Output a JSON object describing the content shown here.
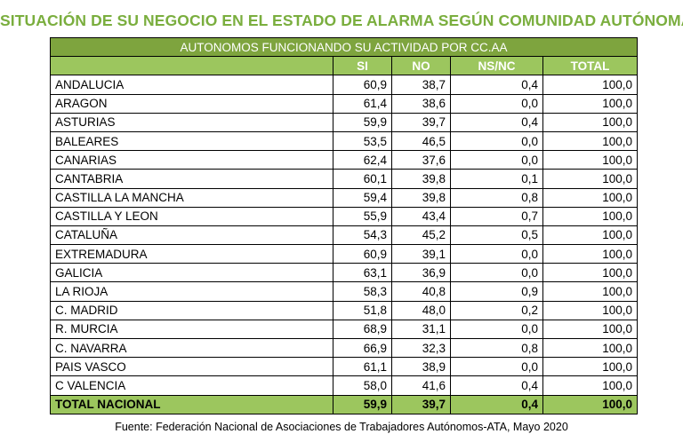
{
  "title": "SITUACIÓN DE SU NEGOCIO EN EL ESTADO DE ALARMA SEGÚN COMUNIDAD AUTÓNOMA",
  "subtitle": "AUTONOMOS FUNCIONANDO SU ACTIVIDAD POR CC.AA",
  "source": "Fuente: Federación Nacional de Asociaciones de Trabajadores Autónomos-ATA, Mayo 2020",
  "colors": {
    "title": "#7aae3e",
    "subtitle_band": "#7ea43e",
    "header": "#9cc65e",
    "total_row": "#9cc65e"
  },
  "chart_data": {
    "type": "table",
    "columns": [
      "",
      "SI",
      "NO",
      "NS/NC",
      "TOTAL"
    ],
    "rows": [
      {
        "name": "ANDALUCIA",
        "values": [
          "60,9",
          "38,7",
          "0,4",
          "100,0"
        ]
      },
      {
        "name": "ARAGON",
        "values": [
          "61,4",
          "38,6",
          "0,0",
          "100,0"
        ]
      },
      {
        "name": "ASTURIAS",
        "values": [
          "59,9",
          "39,7",
          "0,4",
          "100,0"
        ]
      },
      {
        "name": "BALEARES",
        "values": [
          "53,5",
          "46,5",
          "0,0",
          "100,0"
        ]
      },
      {
        "name": "CANARIAS",
        "values": [
          "62,4",
          "37,6",
          "0,0",
          "100,0"
        ]
      },
      {
        "name": "CANTABRIA",
        "values": [
          "60,1",
          "39,8",
          "0,1",
          "100,0"
        ]
      },
      {
        "name": "CASTILLA LA MANCHA",
        "values": [
          "59,4",
          "39,8",
          "0,8",
          "100,0"
        ]
      },
      {
        "name": "CASTILLA Y LEON",
        "values": [
          "55,9",
          "43,4",
          "0,7",
          "100,0"
        ]
      },
      {
        "name": "CATALUÑA",
        "values": [
          "54,3",
          "45,2",
          "0,5",
          "100,0"
        ]
      },
      {
        "name": "EXTREMADURA",
        "values": [
          "60,9",
          "39,1",
          "0,0",
          "100,0"
        ]
      },
      {
        "name": "GALICIA",
        "values": [
          "63,1",
          "36,9",
          "0,0",
          "100,0"
        ]
      },
      {
        "name": "LA RIOJA",
        "values": [
          "58,3",
          "40,8",
          "0,9",
          "100,0"
        ]
      },
      {
        "name": "C. MADRID",
        "values": [
          "51,8",
          "48,0",
          "0,2",
          "100,0"
        ]
      },
      {
        "name": "R. MURCIA",
        "values": [
          "68,9",
          "31,1",
          "0,0",
          "100,0"
        ]
      },
      {
        "name": "C. NAVARRA",
        "values": [
          "66,9",
          "32,3",
          "0,8",
          "100,0"
        ]
      },
      {
        "name": "PAIS VASCO",
        "values": [
          "61,1",
          "38,9",
          "0,0",
          "100,0"
        ]
      },
      {
        "name": "C VALENCIA",
        "values": [
          "58,0",
          "41,6",
          "0,4",
          "100,0"
        ]
      }
    ],
    "total": {
      "name": "TOTAL NACIONAL",
      "values": [
        "59,9",
        "39,7",
        "0,4",
        "100,0"
      ]
    }
  }
}
